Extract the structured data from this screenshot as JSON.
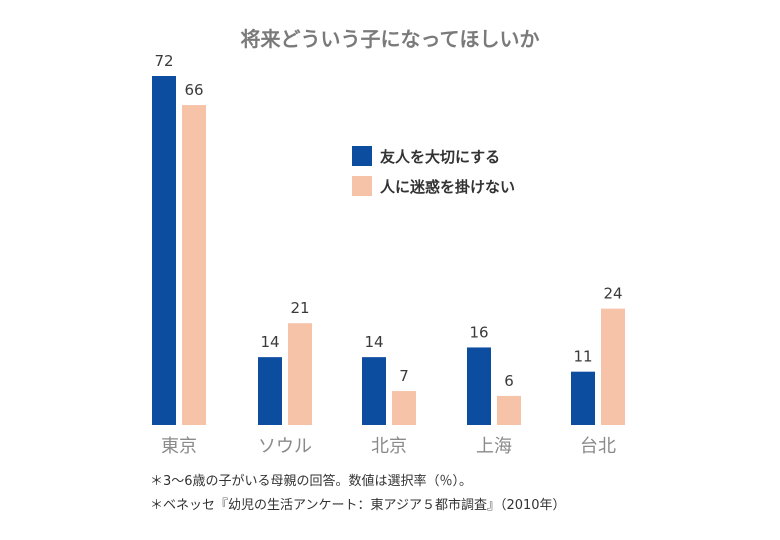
{
  "chart_data": {
    "type": "bar",
    "title": "将来どういう子になってほしいか",
    "categories": [
      "東京",
      "ソウル",
      "北京",
      "上海",
      "台北"
    ],
    "series": [
      {
        "name": "友人を大切にする",
        "color": "#0d4da0",
        "values": [
          72,
          14,
          14,
          16,
          11
        ]
      },
      {
        "name": "人に迷惑を掛けない",
        "color": "#f6c2a8",
        "values": [
          66,
          21,
          7,
          6,
          24
        ]
      }
    ],
    "ylim": [
      0,
      72
    ],
    "grid": false,
    "legend_position": "upper-right"
  },
  "notes": [
    "＊3〜6歳の子がいる母親の回答。数値は選択率（％）。",
    "＊ベネッセ『幼児の生活アンケート：東アジア５都市調査』（2010年）"
  ]
}
